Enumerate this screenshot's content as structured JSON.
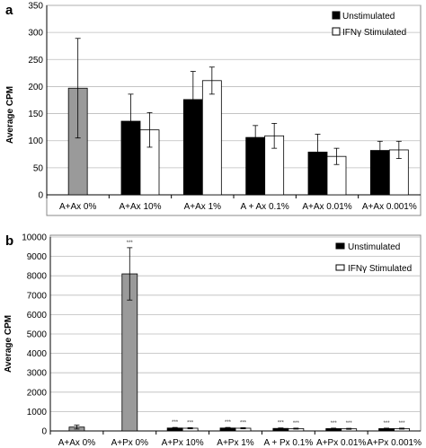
{
  "chart_data": [
    {
      "panel_label": "a",
      "type": "bar",
      "ylabel": "Average CPM",
      "ylim": [
        0,
        350
      ],
      "yticks": [
        0,
        50,
        100,
        150,
        200,
        250,
        300,
        350
      ],
      "categories": [
        "A+Ax  0%",
        "A+Ax 10%",
        "A+Ax 1%",
        "A + Ax  0.1%",
        "A+Ax 0.01%",
        "A+Ax 0.001%"
      ],
      "control": {
        "values": [
          197,
          null,
          null,
          null,
          null,
          null
        ],
        "errors": [
          92,
          null,
          null,
          null,
          null,
          null
        ]
      },
      "series": [
        {
          "name": "Unstimulated",
          "values": [
            null,
            136,
            176,
            106,
            79,
            82
          ],
          "errors": [
            null,
            50,
            52,
            22,
            33,
            17
          ]
        },
        {
          "name": "IFNγ Stimulated",
          "values": [
            null,
            120,
            211,
            109,
            71,
            83
          ],
          "errors": [
            null,
            32,
            25,
            23,
            15,
            16
          ]
        }
      ],
      "colors": {
        "control": "#9a9a9a",
        "unstimulated": "#000000",
        "stimulated": "#ffffff"
      },
      "grid": true,
      "legend": "top-right"
    },
    {
      "panel_label": "b",
      "type": "bar",
      "ylabel": "Average CPM",
      "ylim": [
        0,
        10000
      ],
      "yticks": [
        0,
        1000,
        2000,
        3000,
        4000,
        5000,
        6000,
        7000,
        8000,
        9000,
        10000
      ],
      "categories": [
        "A+Ax  0%",
        "A+Px  0%",
        "A+Px 10%",
        "A+Px 1%",
        "A + Px  0.1%",
        "A+Px 0.01%",
        "A+Px 0.001%"
      ],
      "control": {
        "values": [
          200,
          8100,
          null,
          null,
          null,
          null,
          null
        ],
        "errors": [
          100,
          1350,
          null,
          null,
          null,
          null,
          null
        ],
        "sig": [
          "",
          "***",
          "",
          "",
          "",
          "",
          ""
        ]
      },
      "series": [
        {
          "name": "Unstimulated",
          "values": [
            null,
            null,
            150,
            150,
            130,
            120,
            120
          ],
          "errors": [
            null,
            null,
            30,
            30,
            25,
            25,
            25
          ],
          "sig": [
            "",
            "",
            "***",
            "***",
            "***",
            "***",
            "***"
          ]
        },
        {
          "name": "IFNγ Stimulated",
          "values": [
            null,
            null,
            140,
            140,
            120,
            110,
            120
          ],
          "errors": [
            null,
            null,
            30,
            30,
            25,
            25,
            25
          ],
          "sig": [
            "",
            "",
            "***",
            "***",
            "***",
            "***",
            "***"
          ]
        }
      ],
      "colors": {
        "control": "#9a9a9a",
        "unstimulated": "#000000",
        "stimulated": "#ffffff"
      },
      "grid": true,
      "legend": "top-right"
    }
  ]
}
